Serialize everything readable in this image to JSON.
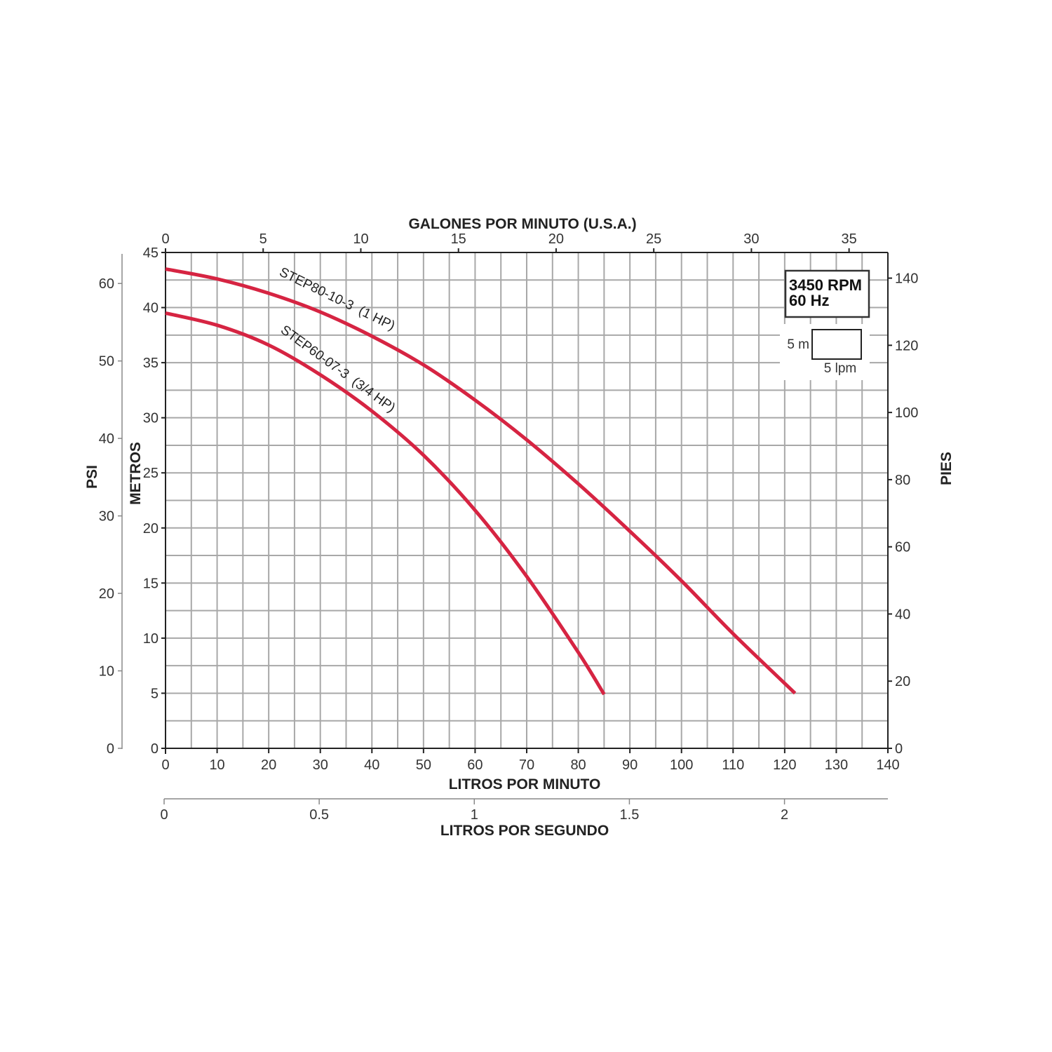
{
  "chart_data": {
    "type": "line",
    "x_axes": {
      "litros_por_minuto": {
        "title": "LITROS POR MINUTO",
        "range": [
          0,
          140
        ],
        "ticks": [
          "0",
          "10",
          "20",
          "30",
          "40",
          "50",
          "60",
          "70",
          "80",
          "90",
          "100",
          "110",
          "120",
          "130",
          "140"
        ]
      },
      "galones_por_minuto": {
        "title": "GALONES POR MINUTO (U.S.A.)",
        "range": [
          0,
          37
        ],
        "ticks": [
          "0",
          "5",
          "10",
          "15",
          "20",
          "25",
          "30",
          "35"
        ]
      },
      "litros_por_segundo": {
        "title": "LITROS POR SEGUNDO",
        "range": [
          0,
          2.333
        ],
        "ticks": [
          "0",
          "0.5",
          "1",
          "1.5",
          "2"
        ]
      }
    },
    "y_axes": {
      "metros": {
        "title": "METROS",
        "range": [
          0,
          45
        ],
        "ticks": [
          "0",
          "5",
          "10",
          "15",
          "20",
          "25",
          "30",
          "35",
          "40",
          "45"
        ]
      },
      "psi": {
        "title": "PSI",
        "range": [
          0,
          64
        ],
        "ticks": [
          "0",
          "10",
          "20",
          "30",
          "40",
          "50",
          "60"
        ]
      },
      "pies": {
        "title": "PIES",
        "range": [
          0,
          147.6
        ],
        "ticks": [
          "0",
          "20",
          "40",
          "60",
          "80",
          "100",
          "120",
          "140"
        ]
      }
    },
    "series": [
      {
        "name": "STEP80-10-3  (1 HP)",
        "color": "#d62442",
        "x": [
          0,
          10,
          20,
          30,
          40,
          50,
          60,
          70,
          80,
          90,
          100,
          110,
          122
        ],
        "y": [
          43.5,
          42.6,
          41.3,
          39.6,
          37.4,
          34.8,
          31.6,
          28.0,
          24.0,
          19.7,
          15.2,
          10.4,
          5.0
        ]
      },
      {
        "name": "STEP60-07-3  (3/4 HP)",
        "color": "#d62442",
        "x": [
          0,
          10,
          20,
          30,
          40,
          50,
          60,
          70,
          80,
          85
        ],
        "y": [
          39.5,
          38.4,
          36.6,
          33.9,
          30.6,
          26.6,
          21.6,
          15.6,
          8.7,
          4.9
        ]
      }
    ],
    "grid": true
  },
  "info_box": {
    "rpm": "3450 RPM",
    "hz": "60 Hz"
  },
  "scale_box": {
    "vertical_label": "5 m",
    "horizontal_label": "5 lpm"
  }
}
